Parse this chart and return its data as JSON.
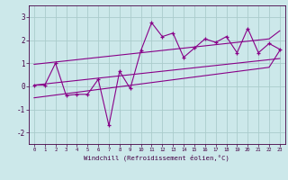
{
  "xlabel": "Windchill (Refroidissement éolien,°C)",
  "bg_color": "#cce8ea",
  "grid_color": "#aacccc",
  "line_color": "#880088",
  "x_data": [
    0,
    1,
    2,
    3,
    4,
    5,
    6,
    7,
    8,
    9,
    10,
    11,
    12,
    13,
    14,
    15,
    16,
    17,
    18,
    19,
    20,
    21,
    22,
    23
  ],
  "y_scatter": [
    0.05,
    0.05,
    1.0,
    -0.4,
    -0.35,
    -0.35,
    0.3,
    -1.7,
    0.65,
    -0.1,
    1.55,
    2.75,
    2.15,
    2.3,
    1.25,
    1.65,
    2.05,
    1.9,
    2.15,
    1.45,
    2.5,
    1.45,
    1.85,
    1.6
  ],
  "y_line_upper": [
    0.95,
    1.0,
    1.05,
    1.1,
    1.15,
    1.2,
    1.25,
    1.3,
    1.35,
    1.4,
    1.45,
    1.5,
    1.55,
    1.6,
    1.65,
    1.7,
    1.75,
    1.8,
    1.85,
    1.9,
    1.95,
    2.0,
    2.05,
    2.4
  ],
  "y_line_mid": [
    0.05,
    0.1,
    0.15,
    0.2,
    0.25,
    0.3,
    0.35,
    0.4,
    0.45,
    0.5,
    0.55,
    0.6,
    0.65,
    0.7,
    0.75,
    0.8,
    0.85,
    0.9,
    0.95,
    1.0,
    1.05,
    1.1,
    1.15,
    1.2
  ],
  "y_line_lower": [
    -0.5,
    -0.44,
    -0.38,
    -0.32,
    -0.26,
    -0.2,
    -0.14,
    -0.08,
    -0.02,
    0.04,
    0.1,
    0.16,
    0.22,
    0.28,
    0.34,
    0.4,
    0.46,
    0.52,
    0.58,
    0.64,
    0.7,
    0.76,
    0.82,
    1.55
  ],
  "ylim": [
    -2.5,
    3.5
  ],
  "yticks": [
    -2,
    -1,
    0,
    1,
    2,
    3
  ],
  "xlim": [
    -0.5,
    23.5
  ],
  "xticks": [
    0,
    1,
    2,
    3,
    4,
    5,
    6,
    7,
    8,
    9,
    10,
    11,
    12,
    13,
    14,
    15,
    16,
    17,
    18,
    19,
    20,
    21,
    22,
    23
  ]
}
